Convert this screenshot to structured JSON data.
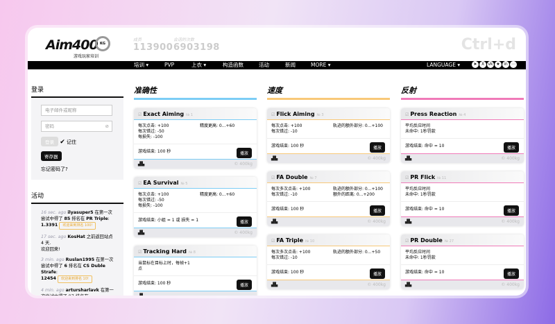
{
  "header": {
    "logo": "Aim400",
    "logo_badge": "KG",
    "logo_sub": "游戏玩家培训",
    "stats": [
      {
        "label": "成员",
        "value": "113900"
      },
      {
        "label": "会话的次数",
        "value": "6903198"
      }
    ],
    "shortcut": "Ctrl+d"
  },
  "nav": {
    "items": [
      "培训 ▾",
      "PVP",
      "上衣 ▾",
      "构造函数",
      "活动",
      "新闻",
      "MORE ▾"
    ],
    "language": "LANGUAGE ▾",
    "social": [
      "telegram-icon",
      "x-icon",
      "vk-icon",
      "star-icon",
      "linkedin-icon",
      "more-icon"
    ]
  },
  "login": {
    "title": "登录",
    "email_placeholder": "电子邮件或昵称",
    "password_placeholder": "密码",
    "login_button": "登录",
    "remember": "记住",
    "register_button": "寄存器",
    "forgot": "忘记密码了?"
  },
  "activity": {
    "title": "活动",
    "items": [
      {
        "ago": "16 sec. ago",
        "user": "ilyasuper5",
        "text": "在第一次尝试中得了",
        "rank": "85",
        "mid": "排名在",
        "game": "PR Triple",
        "score": "1.3391",
        "badge": "欢迎来到排名 100!"
      },
      {
        "ago": "17 sec. ago",
        "user": "KosHat",
        "text": "之前返回站点 4 天.",
        "extra": "欢迎回来!"
      },
      {
        "ago": "3 min. ago",
        "user": "Ruslan1995",
        "text": "在第一次尝试中得了",
        "rank": "6",
        "mid": "排名在",
        "game": "CS Duble Strafe",
        "score": "12454",
        "badge": "欢迎来到排名 10!"
      },
      {
        "ago": "4 min. ago",
        "user": "artursharlavk",
        "text": "在第一次尝试中得了 97 排名在"
      }
    ]
  },
  "columns": [
    {
      "title": "准确性",
      "color": "#7ccdf5",
      "cards": [
        {
          "name": "Exact Aiming",
          "no": "№ 1",
          "left": [
            "每次点击: +100",
            "每次错过: -50",
            "每损失: -100"
          ],
          "right": [
            "精度更高: 0...+60"
          ],
          "end": "游戏结束: 100 秒",
          "play": "播放",
          "weight": "© 400kg"
        },
        {
          "name": "EA Survival",
          "no": "№ 5",
          "left": [
            "每次点击: +100",
            "每次错过: -50",
            "每损失: -100"
          ],
          "right": [
            "精度更高: 0...+60"
          ],
          "end": "游戏结束: 小姐 = 1 或 损失 = 1",
          "play": "播放",
          "weight": "© 400kg"
        },
        {
          "name": "Tracking Hard",
          "no": "№ 8",
          "left": [
            "当鼠标在目标上时，每帧+1",
            "点"
          ],
          "right": [],
          "end": "游戏结束: 100 秒",
          "play": "播放",
          "weight": ""
        }
      ]
    },
    {
      "title": "速度",
      "color": "#f8c878",
      "cards": [
        {
          "name": "Flick Aiming",
          "no": "№ 3",
          "left": [
            "每次点击: +100",
            "每次错过: -10"
          ],
          "right": [
            "轨迹的额外部分: 0...+100"
          ],
          "end": "游戏结束: 100 秒",
          "play": "播放",
          "weight": "© 400kg"
        },
        {
          "name": "FA Double",
          "no": "№ 7",
          "left": [
            "每次多次点击: +100",
            "每次错过: -10"
          ],
          "right": [
            "轨迹的额外部分: 0...+100",
            "额外的距离: 0...+200"
          ],
          "end": "游戏结束: 100 秒",
          "play": "播放",
          "weight": "© 400kg"
        },
        {
          "name": "FA Triple",
          "no": "№ 10",
          "left": [
            "每次多次点击: +100",
            "每次错过: -10"
          ],
          "right": [
            "轨迹的额外部分: 0...+50"
          ],
          "end": "游戏结束: 100 秒",
          "play": "播放",
          "weight": "© 400kg"
        }
      ]
    },
    {
      "title": "反射",
      "color": "#f07ab8",
      "cards": [
        {
          "name": "Press Reaction",
          "no": "№ 4",
          "left": [
            "平均反应时间",
            "未命中: 1秒罚款"
          ],
          "right": [],
          "end": "游戏结束: 命中 = 10",
          "play": "播放",
          "weight": "© 400kg"
        },
        {
          "name": "PR Flick",
          "no": "№ 11",
          "left": [
            "平均反应时间",
            "未命中: 1秒罚款"
          ],
          "right": [],
          "end": "游戏结束: 命中 = 10",
          "play": "播放",
          "weight": "© 400kg"
        },
        {
          "name": "PR Double",
          "no": "№ 27",
          "left": [
            "平均反应时间",
            "未命中: 1秒罚款"
          ],
          "right": [],
          "end": "游戏结束: 命中 = 10",
          "play": "播放",
          "weight": "© 400kg"
        }
      ]
    }
  ]
}
